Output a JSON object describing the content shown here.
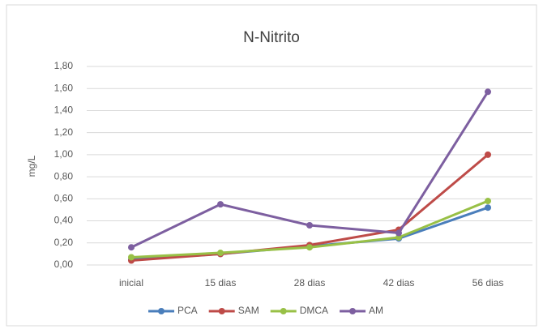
{
  "chart_data": {
    "type": "line",
    "title": "N-Nitrito",
    "y_label": "mg/L",
    "categories": [
      "inicial",
      "15 dias",
      "28 dias",
      "42 dias",
      "56 dias"
    ],
    "series": [
      {
        "name": "PCA",
        "color": "#4a7ebb",
        "values": [
          0.05,
          0.1,
          0.17,
          0.24,
          0.52
        ]
      },
      {
        "name": "SAM",
        "color": "#be4b48",
        "values": [
          0.04,
          0.1,
          0.18,
          0.32,
          1.0
        ]
      },
      {
        "name": "DMCA",
        "color": "#98c046",
        "values": [
          0.07,
          0.11,
          0.16,
          0.25,
          0.58
        ]
      },
      {
        "name": "AM",
        "color": "#7d5fa0",
        "values": [
          0.16,
          0.55,
          0.36,
          0.29,
          1.57
        ]
      }
    ],
    "ylim": [
      0,
      1.8
    ],
    "yticks": [
      {
        "value": 0,
        "label": "0,00"
      },
      {
        "value": 0.2,
        "label": "0,20"
      },
      {
        "value": 0.4,
        "label": "0,40"
      },
      {
        "value": 0.6,
        "label": "0,60"
      },
      {
        "value": 0.8,
        "label": "0,80"
      },
      {
        "value": 1.0,
        "label": "1,00"
      },
      {
        "value": 1.2,
        "label": "1,20"
      },
      {
        "value": 1.4,
        "label": "1,40"
      },
      {
        "value": 1.6,
        "label": "1,60"
      },
      {
        "value": 1.8,
        "label": "1,80"
      }
    ],
    "grid": true,
    "legend": "bottom"
  }
}
